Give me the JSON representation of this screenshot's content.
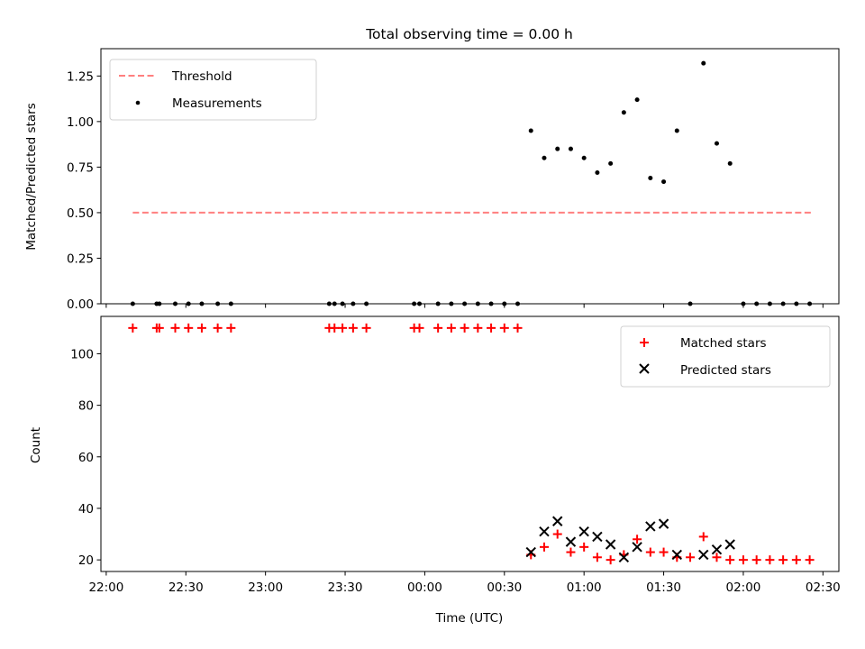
{
  "chart_data": [
    {
      "type": "scatter",
      "title": "Total observing time = 0.00 h",
      "xlabel": "",
      "ylabel": "Matched/Predicted stars",
      "xlim": [
        "21:58",
        "02:36"
      ],
      "ylim": [
        0,
        1.4
      ],
      "yticks": [
        0.0,
        0.25,
        0.5,
        0.75,
        1.0,
        1.25
      ],
      "ytick_labels": [
        "0.00",
        "0.25",
        "0.50",
        "0.75",
        "1.00",
        "1.25"
      ],
      "legend_position": "top-left",
      "threshold": {
        "name": "Threshold",
        "value": 0.5,
        "x_start": "22:10",
        "x_end": "02:26",
        "color": "#ff7f7f",
        "style": "dashed"
      },
      "series": [
        {
          "name": "Measurements",
          "color": "#000000",
          "marker": "dot",
          "points": [
            [
              "22:10",
              0
            ],
            [
              "22:19",
              0
            ],
            [
              "22:20",
              0
            ],
            [
              "22:26",
              0
            ],
            [
              "22:31",
              0
            ],
            [
              "22:36",
              0
            ],
            [
              "22:42",
              0
            ],
            [
              "22:47",
              0
            ],
            [
              "23:24",
              0
            ],
            [
              "23:26",
              0
            ],
            [
              "23:29",
              0
            ],
            [
              "23:33",
              0
            ],
            [
              "23:38",
              0
            ],
            [
              "23:56",
              0
            ],
            [
              "23:58",
              0
            ],
            [
              "00:05",
              0
            ],
            [
              "00:10",
              0
            ],
            [
              "00:15",
              0
            ],
            [
              "00:20",
              0
            ],
            [
              "00:25",
              0
            ],
            [
              "00:30",
              0
            ],
            [
              "00:35",
              0
            ],
            [
              "00:40",
              0.95
            ],
            [
              "00:45",
              0.8
            ],
            [
              "00:50",
              0.85
            ],
            [
              "00:55",
              0.85
            ],
            [
              "01:00",
              0.8
            ],
            [
              "01:05",
              0.72
            ],
            [
              "01:10",
              0.77
            ],
            [
              "01:15",
              1.05
            ],
            [
              "01:20",
              1.12
            ],
            [
              "01:25",
              0.69
            ],
            [
              "01:30",
              0.67
            ],
            [
              "01:35",
              0.95
            ],
            [
              "01:40",
              0
            ],
            [
              "01:45",
              1.32
            ],
            [
              "01:50",
              0.88
            ],
            [
              "01:55",
              0.77
            ],
            [
              "02:00",
              0
            ],
            [
              "02:05",
              0
            ],
            [
              "02:10",
              0
            ],
            [
              "02:15",
              0
            ],
            [
              "02:20",
              0
            ],
            [
              "02:25",
              0
            ]
          ]
        }
      ]
    },
    {
      "type": "scatter",
      "title": "",
      "xlabel": "Time (UTC)",
      "ylabel": "Count",
      "xlim": [
        "21:58",
        "02:36"
      ],
      "ylim": [
        15.5,
        114.5
      ],
      "yticks": [
        20,
        40,
        60,
        80,
        100
      ],
      "xticks": [
        "22:00",
        "22:30",
        "23:00",
        "23:30",
        "00:00",
        "00:30",
        "01:00",
        "01:30",
        "02:00",
        "02:30"
      ],
      "legend_position": "top-right",
      "series": [
        {
          "name": "Matched stars",
          "color": "#ff0000",
          "marker": "plus",
          "points": [
            [
              "22:10",
              110
            ],
            [
              "22:19",
              110
            ],
            [
              "22:20",
              110
            ],
            [
              "22:26",
              110
            ],
            [
              "22:31",
              110
            ],
            [
              "22:36",
              110
            ],
            [
              "22:42",
              110
            ],
            [
              "22:47",
              110
            ],
            [
              "23:24",
              110
            ],
            [
              "23:26",
              110
            ],
            [
              "23:29",
              110
            ],
            [
              "23:33",
              110
            ],
            [
              "23:38",
              110
            ],
            [
              "23:56",
              110
            ],
            [
              "23:58",
              110
            ],
            [
              "00:05",
              110
            ],
            [
              "00:10",
              110
            ],
            [
              "00:15",
              110
            ],
            [
              "00:20",
              110
            ],
            [
              "00:25",
              110
            ],
            [
              "00:30",
              110
            ],
            [
              "00:35",
              110
            ],
            [
              "00:40",
              22
            ],
            [
              "00:45",
              25
            ],
            [
              "00:50",
              30
            ],
            [
              "00:55",
              23
            ],
            [
              "01:00",
              25
            ],
            [
              "01:05",
              21
            ],
            [
              "01:10",
              20
            ],
            [
              "01:15",
              22
            ],
            [
              "01:20",
              28
            ],
            [
              "01:25",
              23
            ],
            [
              "01:30",
              23
            ],
            [
              "01:35",
              21
            ],
            [
              "01:40",
              21
            ],
            [
              "01:45",
              29
            ],
            [
              "01:50",
              21
            ],
            [
              "01:55",
              20
            ],
            [
              "02:00",
              20
            ],
            [
              "02:05",
              20
            ],
            [
              "02:10",
              20
            ],
            [
              "02:15",
              20
            ],
            [
              "02:20",
              20
            ],
            [
              "02:25",
              20
            ]
          ]
        },
        {
          "name": "Predicted stars",
          "color": "#000000",
          "marker": "x",
          "points": [
            [
              "00:40",
              23
            ],
            [
              "00:45",
              31
            ],
            [
              "00:50",
              35
            ],
            [
              "00:55",
              27
            ],
            [
              "01:00",
              31
            ],
            [
              "01:05",
              29
            ],
            [
              "01:10",
              26
            ],
            [
              "01:15",
              21
            ],
            [
              "01:20",
              25
            ],
            [
              "01:25",
              33
            ],
            [
              "01:30",
              34
            ],
            [
              "01:35",
              22
            ],
            [
              "01:45",
              22
            ],
            [
              "01:50",
              24
            ],
            [
              "01:55",
              26
            ]
          ]
        }
      ]
    }
  ]
}
